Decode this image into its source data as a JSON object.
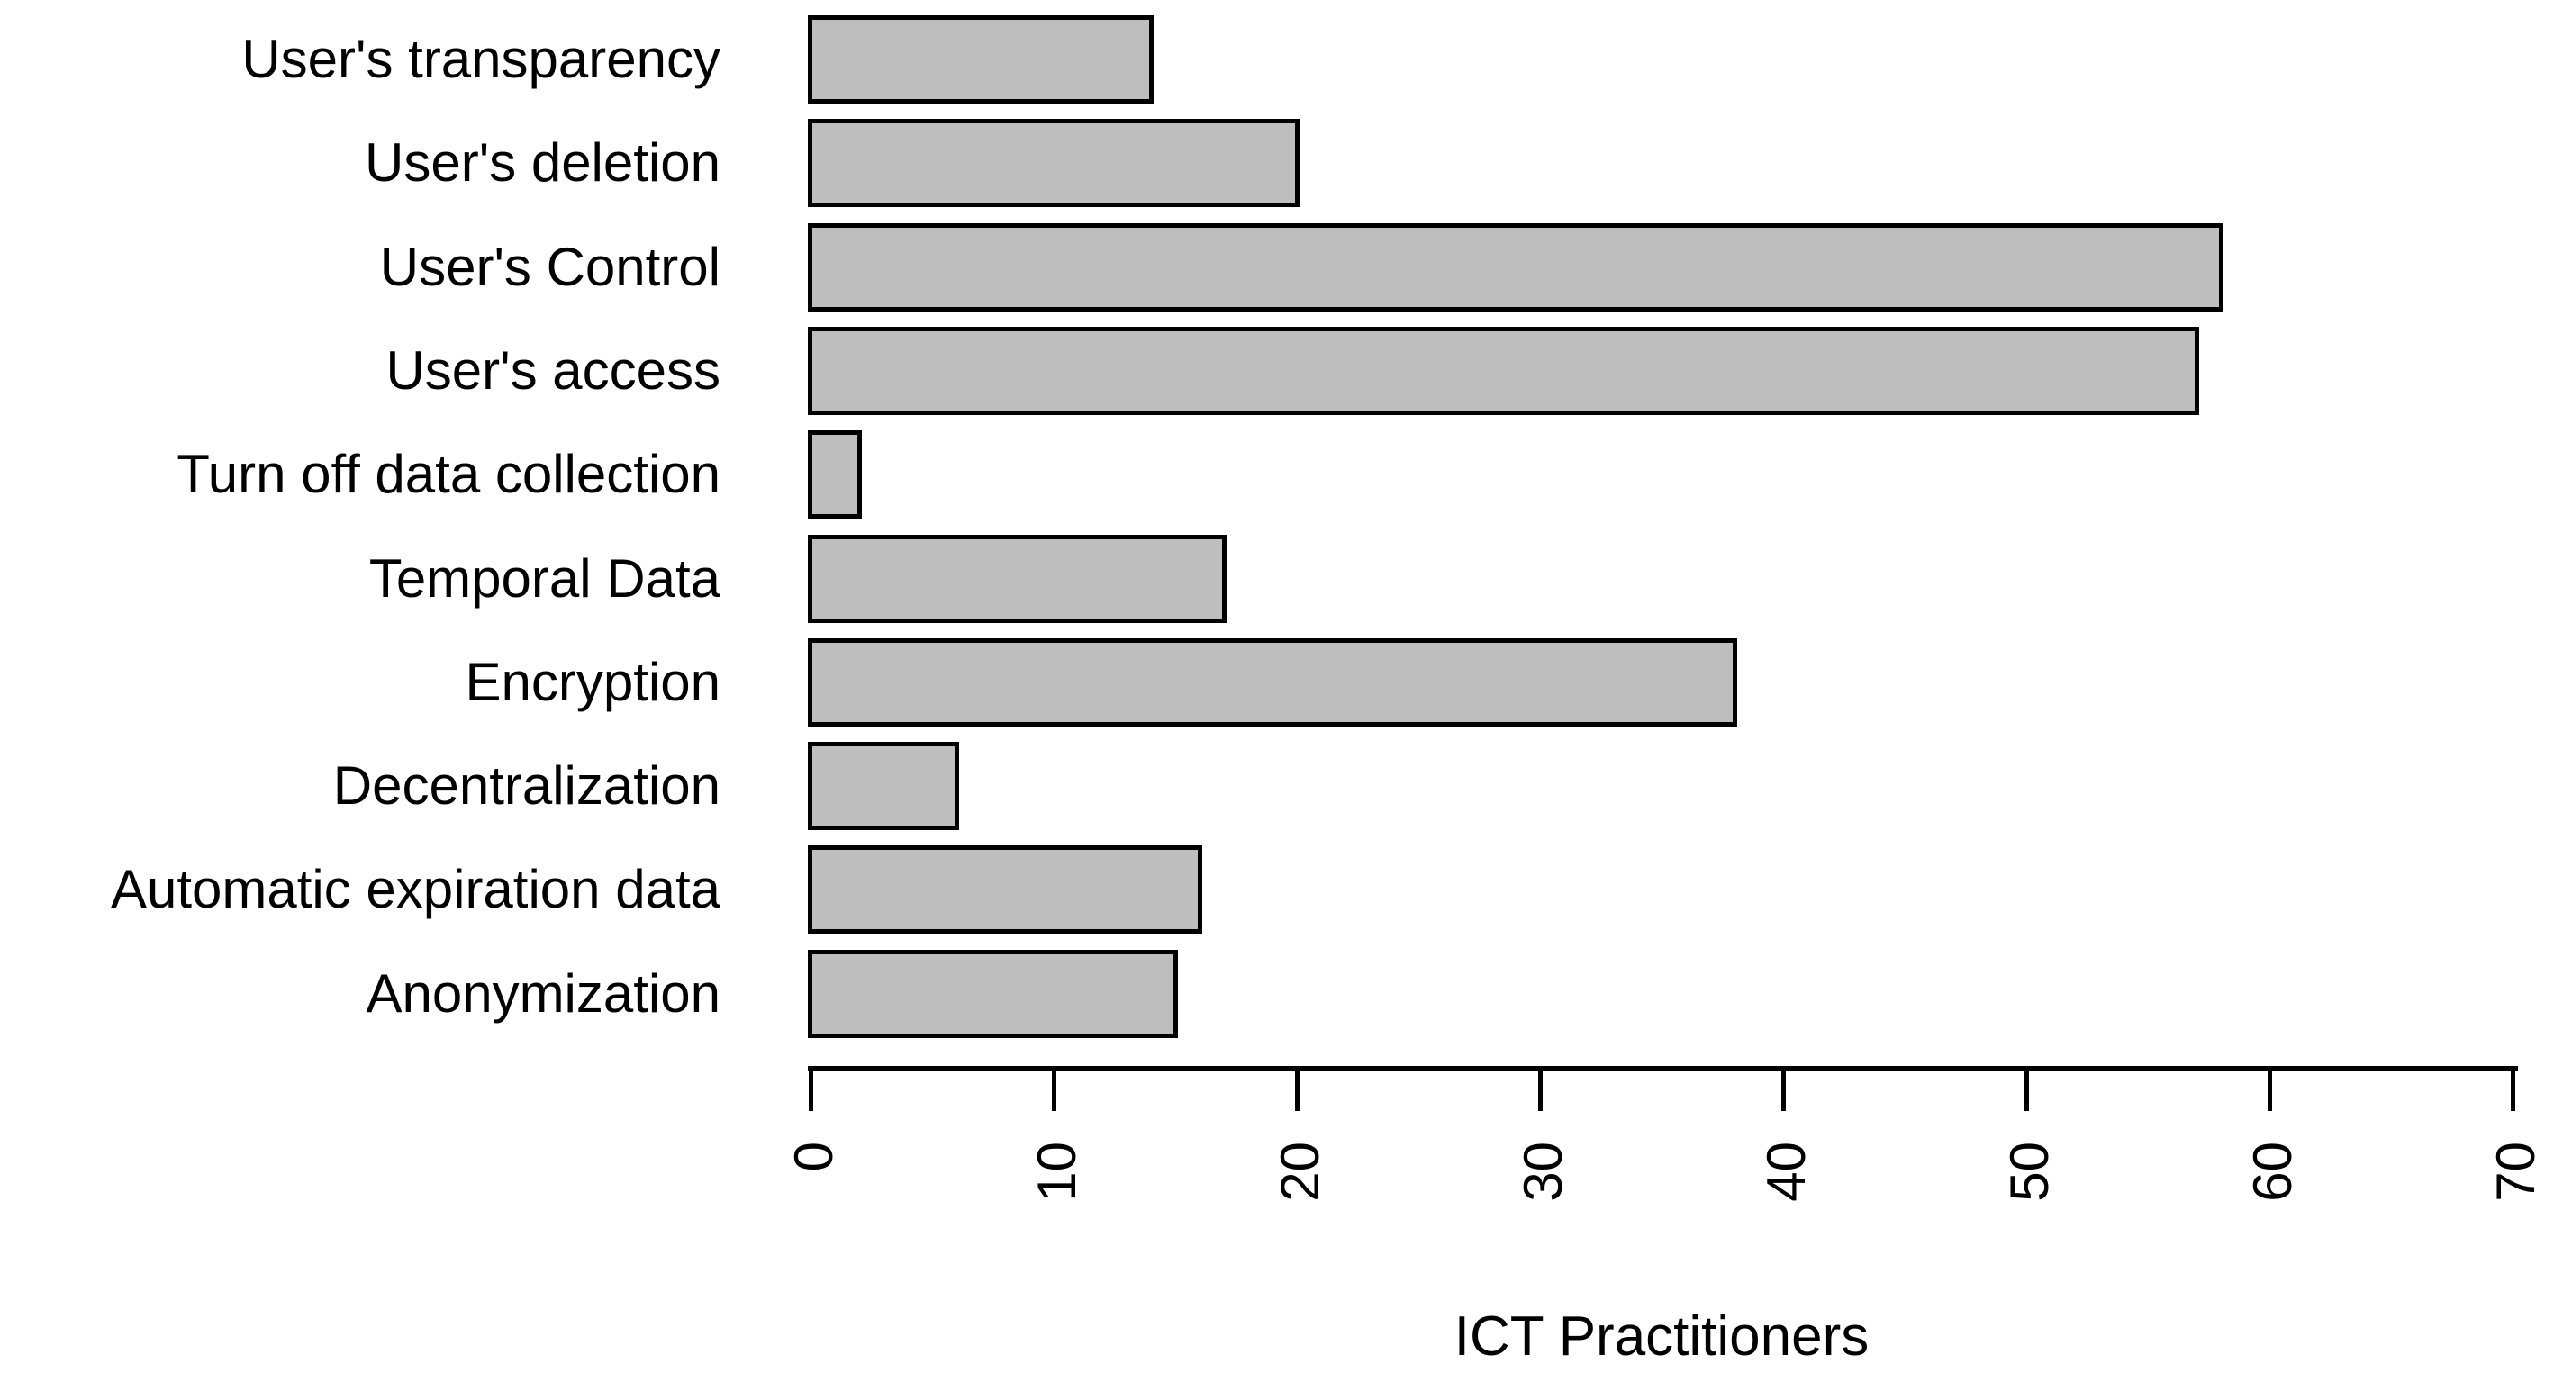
{
  "chart_data": {
    "type": "bar",
    "orientation": "horizontal",
    "title": "",
    "xlabel": "ICT Practitioners",
    "ylabel": "",
    "categories": [
      "User's transparency",
      "User's deletion",
      "User's Control",
      "User's access",
      "Turn off data collection",
      "Temporal Data",
      "Encryption",
      "Decentralization",
      "Automatic expiration data",
      "Anonymization"
    ],
    "values": [
      14,
      20,
      58,
      57,
      2,
      17,
      38,
      6,
      16,
      15
    ],
    "x_ticks": [
      0,
      10,
      20,
      30,
      40,
      50,
      60,
      70
    ],
    "xlim": [
      0,
      70
    ],
    "grid": false,
    "legend": false,
    "colors": {
      "bar_fill": "#bebebe",
      "bar_border": "#000000",
      "axis": "#000000",
      "text": "#000000",
      "background": "#ffffff"
    }
  }
}
